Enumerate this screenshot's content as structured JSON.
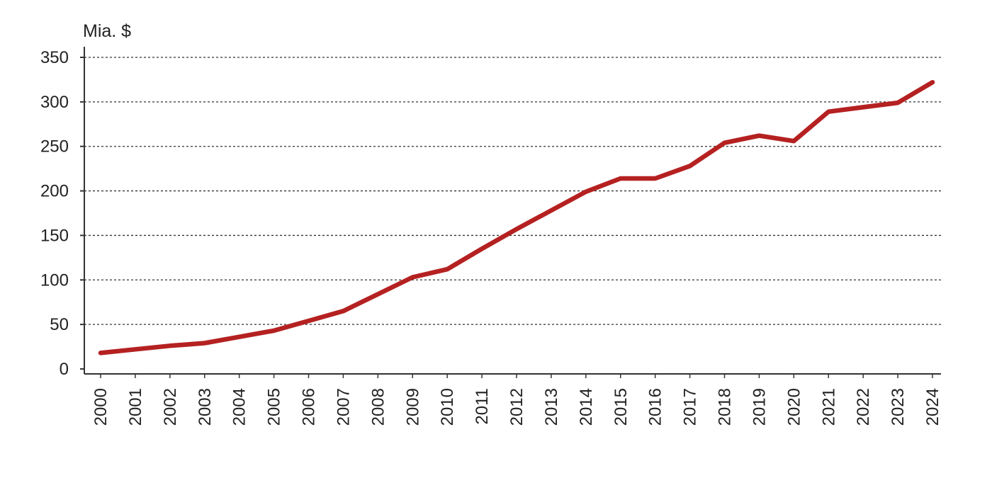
{
  "chart_data": {
    "type": "line",
    "title": "",
    "xlabel": "",
    "ylabel": "Mia. $",
    "ylim": [
      0,
      350
    ],
    "y_ticks": [
      "0",
      "50",
      "100",
      "150",
      "200",
      "250",
      "300",
      "350"
    ],
    "grid": "horizontal dotted",
    "categories": [
      "2000",
      "2001",
      "2002",
      "2003",
      "2004",
      "2005",
      "2006",
      "2007",
      "2008",
      "2009",
      "2010",
      "2011",
      "2012",
      "2013",
      "2014",
      "2015",
      "2016",
      "2017",
      "2018",
      "2019",
      "2020",
      "2021",
      "2022",
      "2023",
      "2024"
    ],
    "series": [
      {
        "values": [
          18,
          22,
          26,
          29,
          36,
          43,
          54,
          65,
          84,
          103,
          112,
          135,
          157,
          178,
          199,
          214,
          214,
          228,
          254,
          262,
          256,
          289,
          294,
          299,
          322
        ]
      }
    ]
  },
  "colors": {
    "line": "#b52121",
    "grid": "#333333",
    "axis": "#333333",
    "text": "#222222"
  }
}
